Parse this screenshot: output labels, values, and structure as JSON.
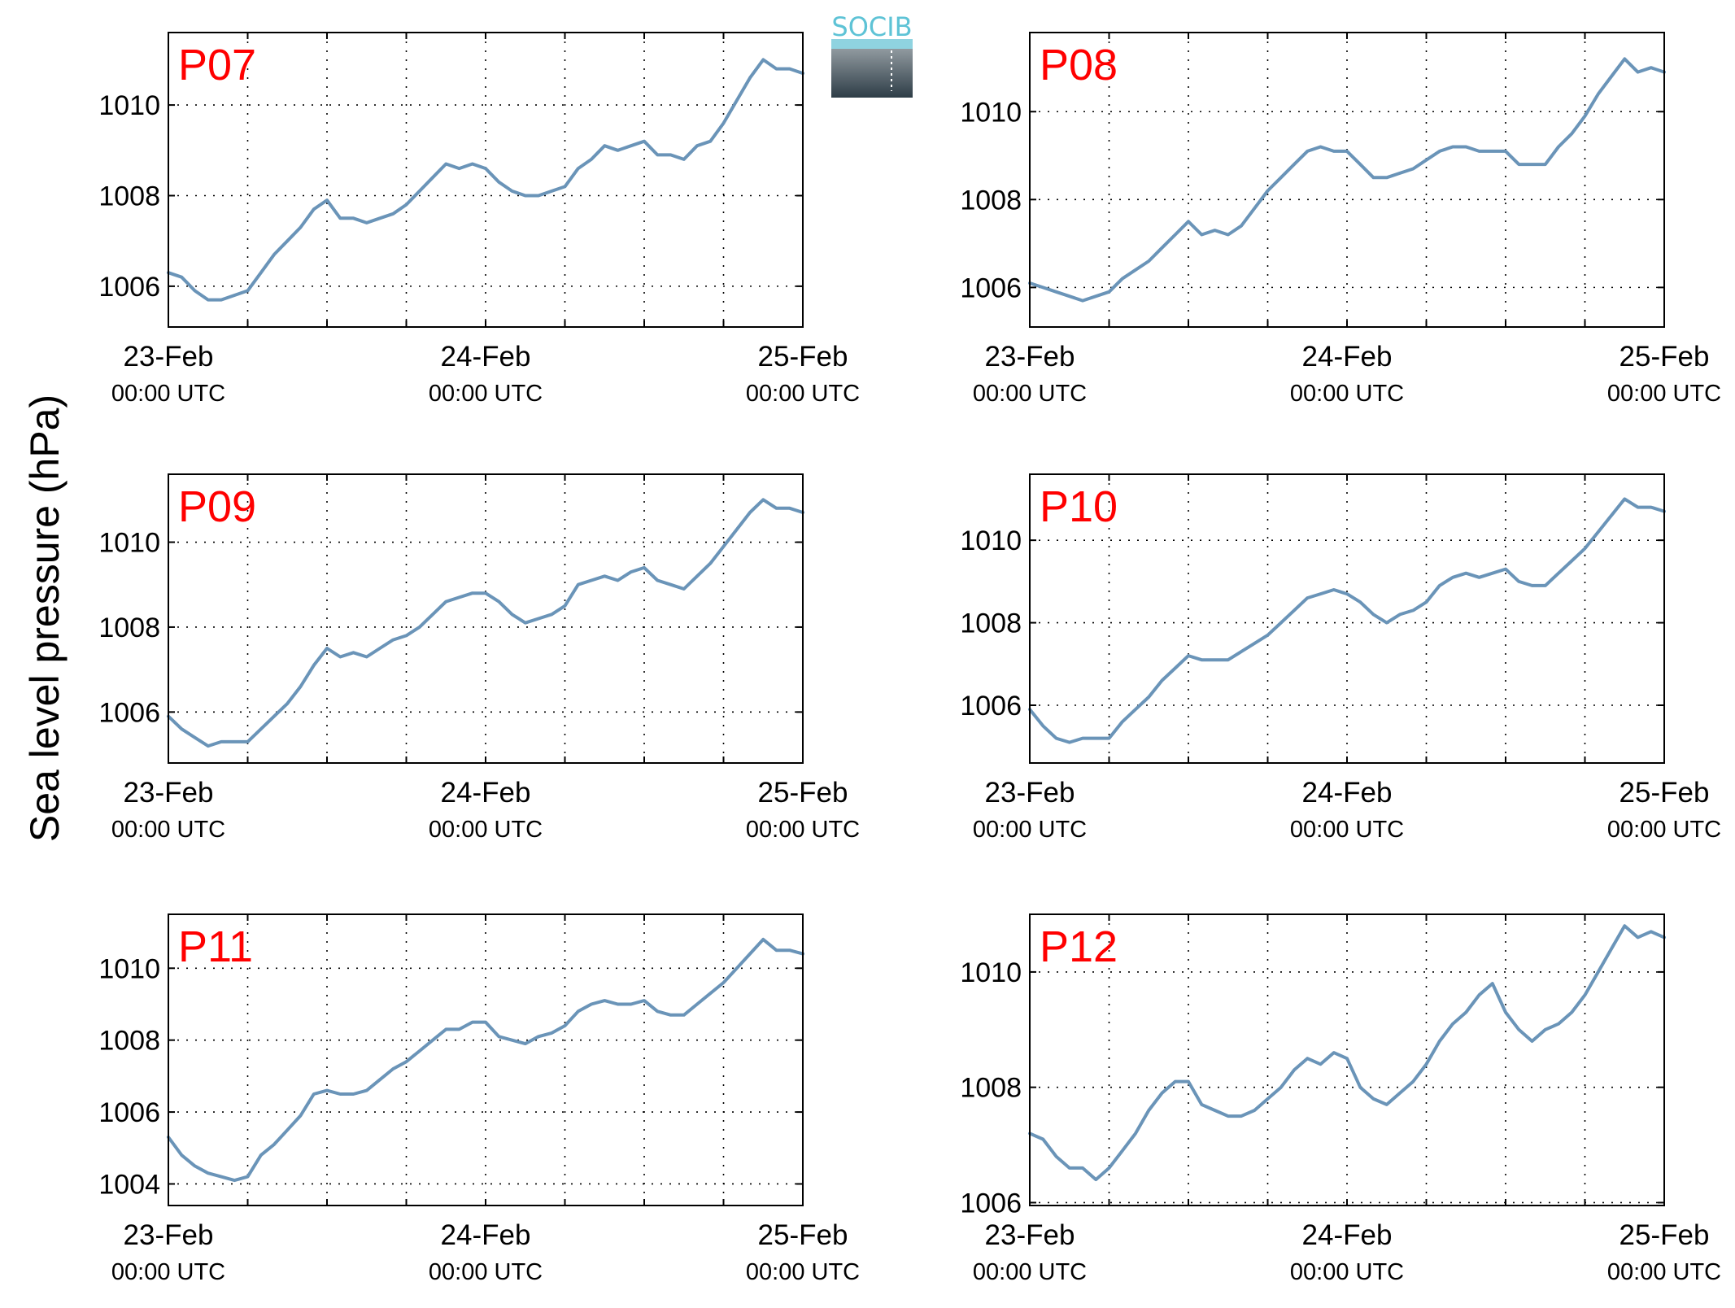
{
  "figure": {
    "ylabel": "Sea level pressure (hPa)",
    "logo_text": "SOCIB",
    "colors": {
      "line": "#6a94b8",
      "panel_label": "#ff0000",
      "axis": "#000000",
      "logo_top": "#5ec3d6",
      "logo_bottom": "#2e3d47"
    }
  },
  "chart_data": [
    {
      "type": "line",
      "panel_label": "P07",
      "ylim": [
        1005.1,
        1011.6
      ],
      "yticks": [
        1006,
        1008,
        1010
      ],
      "xticks": [
        {
          "value": 0,
          "date": "23-Feb",
          "time": "00:00 UTC"
        },
        {
          "value": 24,
          "date": "24-Feb",
          "time": "00:00 UTC"
        },
        {
          "value": 48,
          "date": "25-Feb",
          "time": "00:00 UTC"
        }
      ],
      "grid": true,
      "series": [
        {
          "x": [
            0,
            1,
            2,
            3,
            4,
            5,
            6,
            7,
            8,
            9,
            10,
            11,
            12,
            13,
            14,
            15,
            16,
            17,
            18,
            19,
            20,
            21,
            22,
            23,
            24,
            25,
            26,
            27,
            28,
            29,
            30,
            31,
            32,
            33,
            34,
            35,
            36,
            37,
            38,
            39,
            40,
            41,
            42,
            43,
            44,
            45,
            46,
            47,
            48
          ],
          "y": [
            1006.3,
            1006.2,
            1005.9,
            1005.7,
            1005.7,
            1005.8,
            1005.9,
            1006.3,
            1006.7,
            1007.0,
            1007.3,
            1007.7,
            1007.9,
            1007.5,
            1007.5,
            1007.4,
            1007.5,
            1007.6,
            1007.8,
            1008.1,
            1008.4,
            1008.7,
            1008.6,
            1008.7,
            1008.6,
            1008.3,
            1008.1,
            1008.0,
            1008.0,
            1008.1,
            1008.2,
            1008.6,
            1008.8,
            1009.1,
            1009.0,
            1009.1,
            1009.2,
            1008.9,
            1008.9,
            1008.8,
            1009.1,
            1009.2,
            1009.6,
            1010.1,
            1010.6,
            1011.0,
            1010.8,
            1010.8,
            1010.7
          ]
        }
      ]
    },
    {
      "type": "line",
      "panel_label": "P08",
      "ylim": [
        1005.1,
        1011.8
      ],
      "yticks": [
        1006,
        1008,
        1010
      ],
      "xticks": [
        {
          "value": 0,
          "date": "23-Feb",
          "time": "00:00 UTC"
        },
        {
          "value": 24,
          "date": "24-Feb",
          "time": "00:00 UTC"
        },
        {
          "value": 48,
          "date": "25-Feb",
          "time": "00:00 UTC"
        }
      ],
      "grid": true,
      "series": [
        {
          "x": [
            0,
            1,
            2,
            3,
            4,
            5,
            6,
            7,
            8,
            9,
            10,
            11,
            12,
            13,
            14,
            15,
            16,
            17,
            18,
            19,
            20,
            21,
            22,
            23,
            24,
            25,
            26,
            27,
            28,
            29,
            30,
            31,
            32,
            33,
            34,
            35,
            36,
            37,
            38,
            39,
            40,
            41,
            42,
            43,
            44,
            45,
            46,
            47,
            48
          ],
          "y": [
            1006.1,
            1006.0,
            1005.9,
            1005.8,
            1005.7,
            1005.8,
            1005.9,
            1006.2,
            1006.4,
            1006.6,
            1006.9,
            1007.2,
            1007.5,
            1007.2,
            1007.3,
            1007.2,
            1007.4,
            1007.8,
            1008.2,
            1008.5,
            1008.8,
            1009.1,
            1009.2,
            1009.1,
            1009.1,
            1008.8,
            1008.5,
            1008.5,
            1008.6,
            1008.7,
            1008.9,
            1009.1,
            1009.2,
            1009.2,
            1009.1,
            1009.1,
            1009.1,
            1008.8,
            1008.8,
            1008.8,
            1009.2,
            1009.5,
            1009.9,
            1010.4,
            1010.8,
            1011.2,
            1010.9,
            1011.0,
            1010.9
          ]
        }
      ]
    },
    {
      "type": "line",
      "panel_label": "P09",
      "ylim": [
        1004.8,
        1011.6
      ],
      "yticks": [
        1006,
        1008,
        1010
      ],
      "xticks": [
        {
          "value": 0,
          "date": "23-Feb",
          "time": "00:00 UTC"
        },
        {
          "value": 24,
          "date": "24-Feb",
          "time": "00:00 UTC"
        },
        {
          "value": 48,
          "date": "25-Feb",
          "time": "00:00 UTC"
        }
      ],
      "grid": true,
      "series": [
        {
          "x": [
            0,
            1,
            2,
            3,
            4,
            5,
            6,
            7,
            8,
            9,
            10,
            11,
            12,
            13,
            14,
            15,
            16,
            17,
            18,
            19,
            20,
            21,
            22,
            23,
            24,
            25,
            26,
            27,
            28,
            29,
            30,
            31,
            32,
            33,
            34,
            35,
            36,
            37,
            38,
            39,
            40,
            41,
            42,
            43,
            44,
            45,
            46,
            47,
            48
          ],
          "y": [
            1005.9,
            1005.6,
            1005.4,
            1005.2,
            1005.3,
            1005.3,
            1005.3,
            1005.6,
            1005.9,
            1006.2,
            1006.6,
            1007.1,
            1007.5,
            1007.3,
            1007.4,
            1007.3,
            1007.5,
            1007.7,
            1007.8,
            1008.0,
            1008.3,
            1008.6,
            1008.7,
            1008.8,
            1008.8,
            1008.6,
            1008.3,
            1008.1,
            1008.2,
            1008.3,
            1008.5,
            1009.0,
            1009.1,
            1009.2,
            1009.1,
            1009.3,
            1009.4,
            1009.1,
            1009.0,
            1008.9,
            1009.2,
            1009.5,
            1009.9,
            1010.3,
            1010.7,
            1011.0,
            1010.8,
            1010.8,
            1010.7
          ]
        }
      ]
    },
    {
      "type": "line",
      "panel_label": "P10",
      "ylim": [
        1004.6,
        1011.6
      ],
      "yticks": [
        1006,
        1008,
        1010
      ],
      "xticks": [
        {
          "value": 0,
          "date": "23-Feb",
          "time": "00:00 UTC"
        },
        {
          "value": 24,
          "date": "24-Feb",
          "time": "00:00 UTC"
        },
        {
          "value": 48,
          "date": "25-Feb",
          "time": "00:00 UTC"
        }
      ],
      "grid": true,
      "series": [
        {
          "x": [
            0,
            1,
            2,
            3,
            4,
            5,
            6,
            7,
            8,
            9,
            10,
            11,
            12,
            13,
            14,
            15,
            16,
            17,
            18,
            19,
            20,
            21,
            22,
            23,
            24,
            25,
            26,
            27,
            28,
            29,
            30,
            31,
            32,
            33,
            34,
            35,
            36,
            37,
            38,
            39,
            40,
            41,
            42,
            43,
            44,
            45,
            46,
            47,
            48
          ],
          "y": [
            1005.9,
            1005.5,
            1005.2,
            1005.1,
            1005.2,
            1005.2,
            1005.2,
            1005.6,
            1005.9,
            1006.2,
            1006.6,
            1006.9,
            1007.2,
            1007.1,
            1007.1,
            1007.1,
            1007.3,
            1007.5,
            1007.7,
            1008.0,
            1008.3,
            1008.6,
            1008.7,
            1008.8,
            1008.7,
            1008.5,
            1008.2,
            1008.0,
            1008.2,
            1008.3,
            1008.5,
            1008.9,
            1009.1,
            1009.2,
            1009.1,
            1009.2,
            1009.3,
            1009.0,
            1008.9,
            1008.9,
            1009.2,
            1009.5,
            1009.8,
            1010.2,
            1010.6,
            1011.0,
            1010.8,
            1010.8,
            1010.7
          ]
        }
      ]
    },
    {
      "type": "line",
      "panel_label": "P11",
      "ylim": [
        1003.4,
        1011.5
      ],
      "yticks": [
        1004,
        1006,
        1008,
        1010
      ],
      "xticks": [
        {
          "value": 0,
          "date": "23-Feb",
          "time": "00:00 UTC"
        },
        {
          "value": 24,
          "date": "24-Feb",
          "time": "00:00 UTC"
        },
        {
          "value": 48,
          "date": "25-Feb",
          "time": "00:00 UTC"
        }
      ],
      "grid": true,
      "series": [
        {
          "x": [
            0,
            1,
            2,
            3,
            4,
            5,
            6,
            7,
            8,
            9,
            10,
            11,
            12,
            13,
            14,
            15,
            16,
            17,
            18,
            19,
            20,
            21,
            22,
            23,
            24,
            25,
            26,
            27,
            28,
            29,
            30,
            31,
            32,
            33,
            34,
            35,
            36,
            37,
            38,
            39,
            40,
            41,
            42,
            43,
            44,
            45,
            46,
            47,
            48
          ],
          "y": [
            1005.3,
            1004.8,
            1004.5,
            1004.3,
            1004.2,
            1004.1,
            1004.2,
            1004.8,
            1005.1,
            1005.5,
            1005.9,
            1006.5,
            1006.6,
            1006.5,
            1006.5,
            1006.6,
            1006.9,
            1007.2,
            1007.4,
            1007.7,
            1008.0,
            1008.3,
            1008.3,
            1008.5,
            1008.5,
            1008.1,
            1008.0,
            1007.9,
            1008.1,
            1008.2,
            1008.4,
            1008.8,
            1009.0,
            1009.1,
            1009.0,
            1009.0,
            1009.1,
            1008.8,
            1008.7,
            1008.7,
            1009.0,
            1009.3,
            1009.6,
            1010.0,
            1010.4,
            1010.8,
            1010.5,
            1010.5,
            1010.4
          ]
        }
      ]
    },
    {
      "type": "line",
      "panel_label": "P12",
      "ylim": [
        1005.95,
        1011.0
      ],
      "yticks": [
        1006,
        1008,
        1010
      ],
      "xticks": [
        {
          "value": 0,
          "date": "23-Feb",
          "time": "00:00 UTC"
        },
        {
          "value": 24,
          "date": "24-Feb",
          "time": "00:00 UTC"
        },
        {
          "value": 48,
          "date": "25-Feb",
          "time": "00:00 UTC"
        }
      ],
      "grid": true,
      "series": [
        {
          "x": [
            0,
            1,
            2,
            3,
            4,
            5,
            6,
            7,
            8,
            9,
            10,
            11,
            12,
            13,
            14,
            15,
            16,
            17,
            18,
            19,
            20,
            21,
            22,
            23,
            24,
            25,
            26,
            27,
            28,
            29,
            30,
            31,
            32,
            33,
            34,
            35,
            36,
            37,
            38,
            39,
            40,
            41,
            42,
            43,
            44,
            45,
            46,
            47,
            48
          ],
          "y": [
            1007.2,
            1007.1,
            1006.8,
            1006.6,
            1006.6,
            1006.4,
            1006.6,
            1006.9,
            1007.2,
            1007.6,
            1007.9,
            1008.1,
            1008.1,
            1007.7,
            1007.6,
            1007.5,
            1007.5,
            1007.6,
            1007.8,
            1008.0,
            1008.3,
            1008.5,
            1008.4,
            1008.6,
            1008.5,
            1008.0,
            1007.8,
            1007.7,
            1007.9,
            1008.1,
            1008.4,
            1008.8,
            1009.1,
            1009.3,
            1009.6,
            1009.8,
            1009.3,
            1009.0,
            1008.8,
            1009.0,
            1009.1,
            1009.3,
            1009.6,
            1010.0,
            1010.4,
            1010.8,
            1010.6,
            1010.7,
            1010.6
          ]
        }
      ]
    }
  ]
}
